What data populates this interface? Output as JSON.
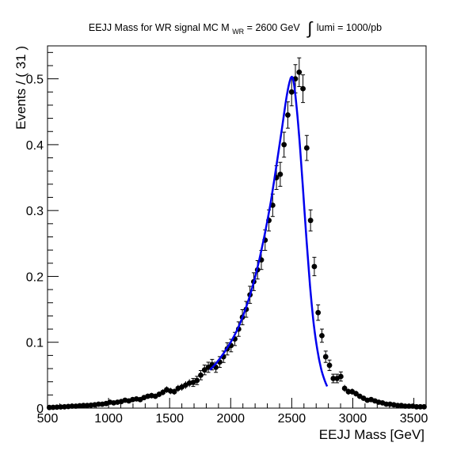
{
  "chart_data": {
    "type": "scatter",
    "title": {
      "prefix": "EEJJ Mass for WR signal MC M",
      "subscript": "WR",
      "mass": " = 2600 GeV",
      "integral": "∫",
      "lumi": "lumi = 1000/pb"
    },
    "xlabel": "EEJJ Mass [GeV]",
    "ylabel": "Events / ( 31 )",
    "xlim": [
      500,
      3600
    ],
    "ylim": [
      0,
      0.55
    ],
    "x_ticks": [
      500,
      1000,
      1500,
      2000,
      2500,
      3000,
      3500
    ],
    "x_tick_labels": [
      "500",
      "1000",
      "1500",
      "2000",
      "2500",
      "3000",
      "3500"
    ],
    "y_ticks": [
      0,
      0.1,
      0.2,
      0.3,
      0.4,
      0.5
    ],
    "y_tick_labels": [
      "0",
      "0.1",
      "0.2",
      "0.3",
      "0.4",
      "0.5"
    ],
    "grid": false,
    "colors": {
      "points": "#000000",
      "fit": "#0000ee"
    },
    "series": [
      {
        "kind": "points_with_errors",
        "x": [
          515,
          546,
          577,
          608,
          639,
          670,
          701,
          732,
          763,
          794,
          825,
          856,
          887,
          918,
          949,
          980,
          1011,
          1042,
          1073,
          1104,
          1135,
          1166,
          1197,
          1228,
          1259,
          1290,
          1321,
          1352,
          1383,
          1414,
          1445,
          1476,
          1507,
          1538,
          1569,
          1600,
          1631,
          1662,
          1693,
          1724,
          1755,
          1786,
          1817,
          1848,
          1879,
          1910,
          1941,
          1972,
          2003,
          2034,
          2065,
          2096,
          2127,
          2158,
          2189,
          2220,
          2251,
          2282,
          2313,
          2344,
          2375,
          2406,
          2437,
          2468,
          2499,
          2530,
          2561,
          2592,
          2623,
          2654,
          2685,
          2716,
          2747,
          2778,
          2809,
          2840,
          2871,
          2902,
          2933,
          2964,
          2995,
          3026,
          3057,
          3088,
          3119,
          3150,
          3181,
          3212,
          3243,
          3274,
          3305,
          3336,
          3367,
          3398,
          3429,
          3460,
          3491,
          3522,
          3553,
          3584
        ],
        "y": [
          0.001,
          0.0012,
          0.0015,
          0.0018,
          0.002,
          0.0025,
          0.003,
          0.003,
          0.0035,
          0.004,
          0.004,
          0.0045,
          0.005,
          0.006,
          0.006,
          0.007,
          0.009,
          0.008,
          0.009,
          0.01,
          0.012,
          0.011,
          0.013,
          0.014,
          0.013,
          0.016,
          0.018,
          0.019,
          0.018,
          0.021,
          0.024,
          0.028,
          0.026,
          0.025,
          0.03,
          0.032,
          0.035,
          0.038,
          0.039,
          0.042,
          0.05,
          0.058,
          0.062,
          0.066,
          0.062,
          0.07,
          0.078,
          0.09,
          0.095,
          0.105,
          0.12,
          0.138,
          0.15,
          0.172,
          0.192,
          0.21,
          0.225,
          0.255,
          0.285,
          0.308,
          0.35,
          0.355,
          0.4,
          0.445,
          0.48,
          0.5,
          0.51,
          0.485,
          0.395,
          0.285,
          0.215,
          0.145,
          0.11,
          0.078,
          0.065,
          0.045,
          0.045,
          0.048,
          0.03,
          0.025,
          0.025,
          0.022,
          0.018,
          0.015,
          0.012,
          0.013,
          0.011,
          0.009,
          0.008,
          0.006,
          0.006,
          0.005,
          0.004,
          0.004,
          0.003,
          0.003,
          0.003,
          0.002,
          0.002,
          0.002
        ],
        "errors": [
          0.001,
          0.001,
          0.001,
          0.0012,
          0.0013,
          0.0014,
          0.0015,
          0.0015,
          0.0017,
          0.0018,
          0.0018,
          0.002,
          0.002,
          0.002,
          0.002,
          0.0023,
          0.0026,
          0.0025,
          0.0027,
          0.003,
          0.0032,
          0.003,
          0.0033,
          0.0035,
          0.0033,
          0.0037,
          0.004,
          0.0042,
          0.004,
          0.0044,
          0.0047,
          0.005,
          0.0049,
          0.0048,
          0.0053,
          0.0055,
          0.0058,
          0.006,
          0.0061,
          0.0063,
          0.007,
          0.0074,
          0.0077,
          0.008,
          0.0077,
          0.0082,
          0.0087,
          0.0093,
          0.0095,
          0.01,
          0.011,
          0.0115,
          0.012,
          0.013,
          0.0135,
          0.014,
          0.0145,
          0.0155,
          0.016,
          0.017,
          0.018,
          0.0182,
          0.019,
          0.02,
          0.021,
          0.0215,
          0.0218,
          0.021,
          0.019,
          0.016,
          0.014,
          0.0117,
          0.01,
          0.0086,
          0.008,
          0.0065,
          0.0065,
          0.007,
          0.0053,
          0.0048,
          0.0048,
          0.0045,
          0.004,
          0.0038,
          0.0033,
          0.0035,
          0.0032,
          0.003,
          0.0028,
          0.0025,
          0.0025,
          0.0022,
          0.002,
          0.002,
          0.0017,
          0.0017,
          0.0017,
          0.0014,
          0.0014,
          0.0014
        ]
      },
      {
        "kind": "fit_curve",
        "x": [
          1830,
          1880,
          1930,
          1980,
          2030,
          2080,
          2130,
          2180,
          2230,
          2280,
          2330,
          2380,
          2420,
          2460,
          2490,
          2510,
          2530,
          2560,
          2590,
          2620,
          2650,
          2680,
          2710,
          2740,
          2770,
          2790
        ],
        "y": [
          0.058,
          0.068,
          0.08,
          0.094,
          0.11,
          0.13,
          0.155,
          0.185,
          0.222,
          0.265,
          0.315,
          0.375,
          0.425,
          0.475,
          0.5,
          0.5,
          0.475,
          0.415,
          0.338,
          0.258,
          0.185,
          0.128,
          0.088,
          0.06,
          0.042,
          0.033
        ]
      }
    ]
  }
}
